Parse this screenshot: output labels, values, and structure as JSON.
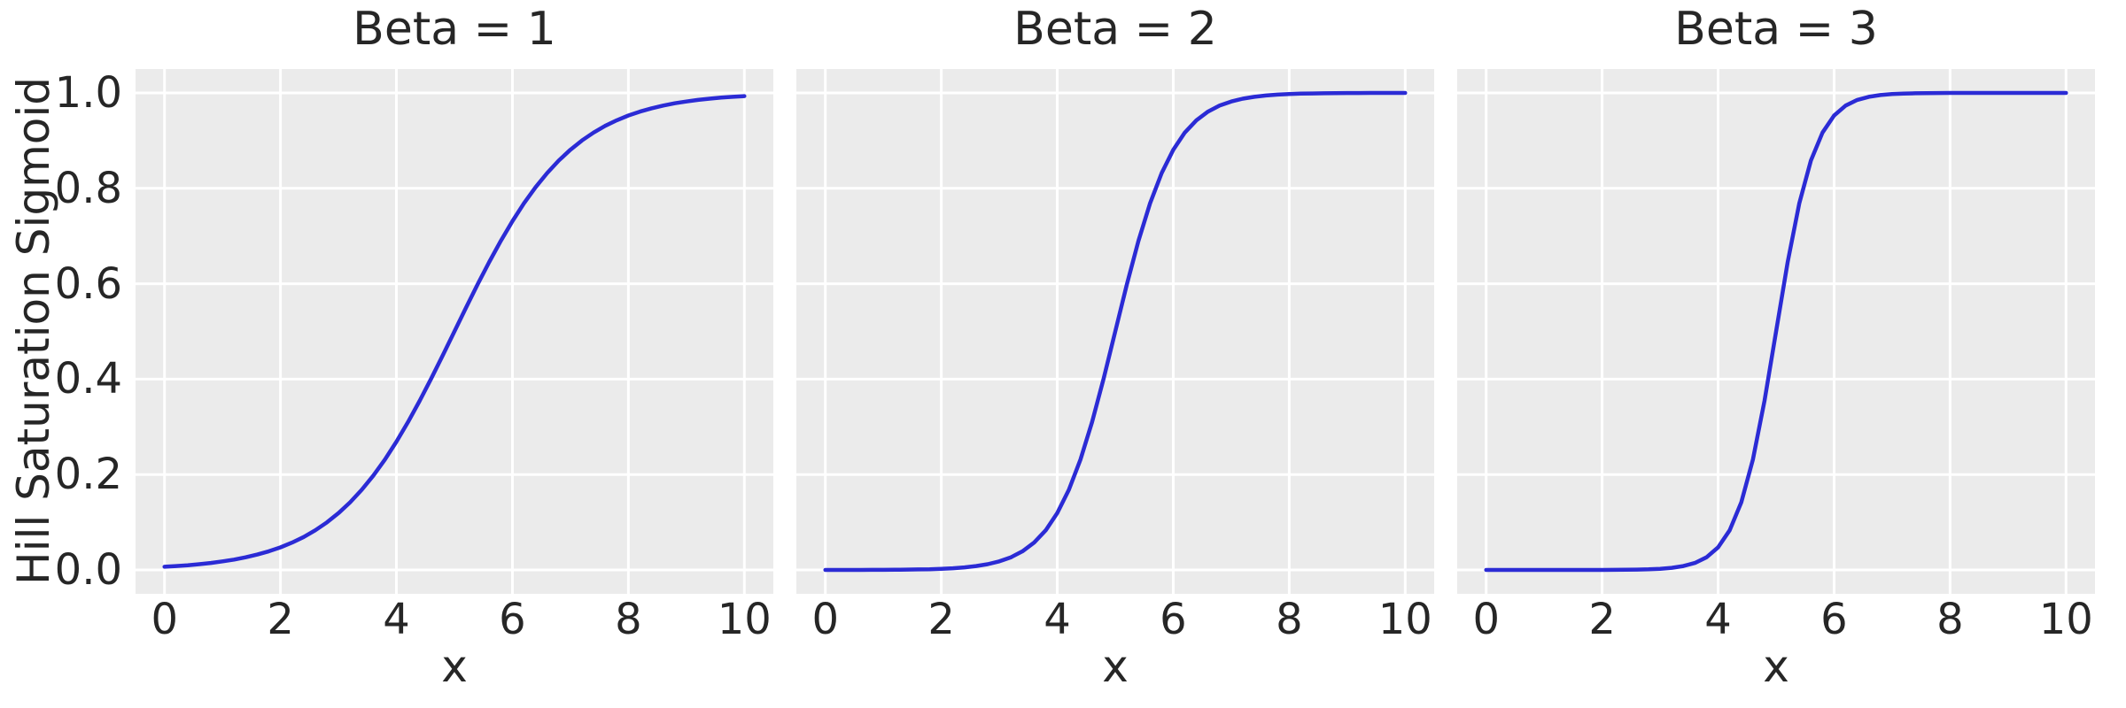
{
  "figure": {
    "background": "#ffffff",
    "axes_background": "#ebebeb",
    "grid_color": "#ffffff",
    "text_color": "#262626",
    "line_color": "#2b2bd5"
  },
  "chart_data": {
    "type": "line",
    "layout": "1 row x 3 columns, shared y-axis",
    "xlabel": "x",
    "ylabel": "Hill Saturation Sigmoid",
    "xlim": [
      -0.5,
      10.5
    ],
    "ylim": [
      -0.05,
      1.05
    ],
    "xticks": [
      0,
      2,
      4,
      6,
      8,
      10
    ],
    "xtick_labels": [
      "0",
      "2",
      "4",
      "6",
      "8",
      "10"
    ],
    "yticks": [
      0.0,
      0.2,
      0.4,
      0.6,
      0.8,
      1.0
    ],
    "ytick_labels": [
      "0.0",
      "0.2",
      "0.4",
      "0.6",
      "0.8",
      "1.0"
    ],
    "grid": true,
    "legend": "none",
    "line_color": "#2b2bd5",
    "x": [
      0,
      0.2,
      0.4,
      0.6,
      0.8,
      1,
      1.2,
      1.4,
      1.6,
      1.8,
      2,
      2.2,
      2.4,
      2.6,
      2.8,
      3,
      3.2,
      3.4,
      3.6,
      3.8,
      4,
      4.2,
      4.4,
      4.6,
      4.8,
      5,
      5.2,
      5.4,
      5.6,
      5.8,
      6,
      6.2,
      6.4,
      6.6,
      6.8,
      7,
      7.2,
      7.4,
      7.6,
      7.8,
      8,
      8.2,
      8.4,
      8.6,
      8.8,
      9,
      9.2,
      9.4,
      9.6,
      9.8,
      10
    ],
    "subplots": [
      {
        "title": "Beta = 1",
        "beta": 1,
        "y": [
          0.00669,
          0.00816,
          0.00995,
          0.01213,
          0.01477,
          0.01799,
          0.02188,
          0.0266,
          0.0323,
          0.03917,
          0.04743,
          0.05732,
          0.06914,
          0.08317,
          0.09975,
          0.1192,
          0.14185,
          0.16798,
          0.19782,
          0.23147,
          0.26894,
          0.31003,
          0.35434,
          0.40131,
          0.45017,
          0.5,
          0.54983,
          0.59869,
          0.64566,
          0.68997,
          0.73106,
          0.76853,
          0.80218,
          0.83202,
          0.85815,
          0.8808,
          0.90025,
          0.91683,
          0.93086,
          0.94268,
          0.95257,
          0.96083,
          0.96771,
          0.9734,
          0.97812,
          0.98201,
          0.98523,
          0.98787,
          0.99005,
          0.99184,
          0.99331
        ]
      },
      {
        "title": "Beta = 2",
        "beta": 2,
        "y": [
          5e-05,
          7e-05,
          0.0001,
          0.00015,
          0.00022,
          0.00034,
          0.0005,
          0.00075,
          0.00111,
          0.00166,
          0.00247,
          0.00368,
          0.00549,
          0.00816,
          0.01213,
          0.01799,
          0.0266,
          0.03917,
          0.05732,
          0.08317,
          0.1192,
          0.16798,
          0.23147,
          0.31003,
          0.40131,
          0.5,
          0.59869,
          0.68997,
          0.76853,
          0.83202,
          0.8808,
          0.91683,
          0.94268,
          0.96083,
          0.9734,
          0.98201,
          0.98787,
          0.99184,
          0.99451,
          0.99632,
          0.99753,
          0.99834,
          0.99889,
          0.99925,
          0.9995,
          0.99967,
          0.99978,
          0.99985,
          0.9999,
          0.99993,
          0.99995
        ]
      },
      {
        "title": "Beta = 3",
        "beta": 3,
        "y": [
          0,
          0,
          0,
          0,
          0,
          1e-05,
          1e-05,
          2e-05,
          4e-05,
          7e-05,
          0.00012,
          0.00022,
          0.00041,
          0.00075,
          0.00136,
          0.00247,
          0.0045,
          0.00816,
          0.01477,
          0.0266,
          0.04743,
          0.08317,
          0.14185,
          0.23147,
          0.35434,
          0.5,
          0.64566,
          0.76853,
          0.85815,
          0.91683,
          0.95257,
          0.9734,
          0.98523,
          0.99184,
          0.9955,
          0.99753,
          0.99864,
          0.99925,
          0.99959,
          0.99978,
          0.99988,
          0.99993,
          0.99996,
          0.99998,
          0.99999,
          0.99999,
          1,
          1,
          1,
          1,
          1
        ]
      }
    ]
  }
}
